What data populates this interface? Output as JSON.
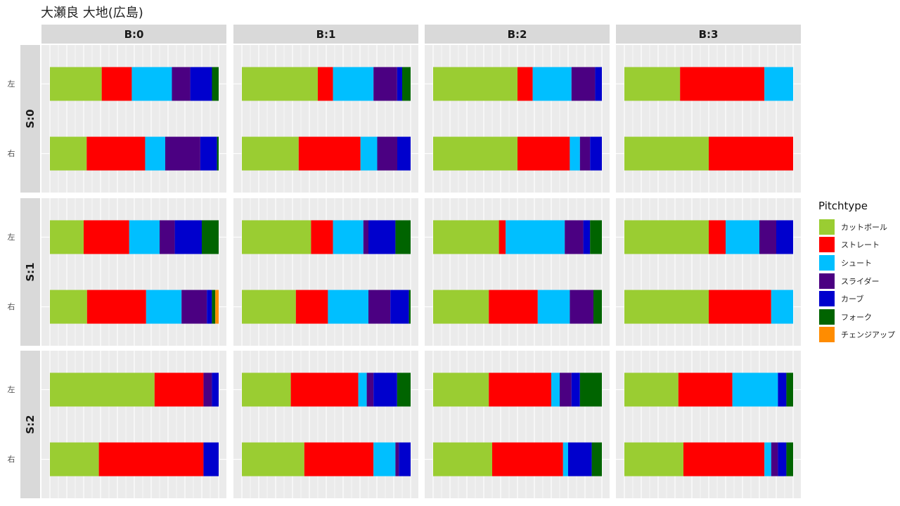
{
  "title": "大瀬良 大地(広島)",
  "legend": {
    "title": "Pitchtype",
    "items": [
      {
        "label": "カットボール",
        "color": "#9ACD32"
      },
      {
        "label": "ストレート",
        "color": "#FF0000"
      },
      {
        "label": "シュート",
        "color": "#00BFFF"
      },
      {
        "label": "スライダー",
        "color": "#4B0082"
      },
      {
        "label": "カーブ",
        "color": "#0000CD"
      },
      {
        "label": "フォーク",
        "color": "#006400"
      },
      {
        "label": "チェンジアップ",
        "color": "#FF8C00"
      }
    ]
  },
  "chart_data": {
    "type": "bar",
    "orientation": "horizontal",
    "stacked": true,
    "normalized": true,
    "column_facets": [
      "B:0",
      "B:1",
      "B:2",
      "B:3"
    ],
    "row_facets": [
      "S:0",
      "S:1",
      "S:2"
    ],
    "categories": [
      "左",
      "右"
    ],
    "series_names": [
      "カットボール",
      "ストレート",
      "シュート",
      "スライダー",
      "カーブ",
      "フォーク",
      "チェンジアップ"
    ],
    "xlim": [
      0,
      1
    ],
    "grid": true,
    "legend_position": "right",
    "panels": [
      {
        "col": "B:0",
        "row": "S:0",
        "values": {
          "左": [
            0.31,
            0.18,
            0.24,
            0.11,
            0.13,
            0.04,
            0.0
          ],
          "右": [
            0.22,
            0.35,
            0.12,
            0.21,
            0.1,
            0.01,
            0.0
          ]
        }
      },
      {
        "col": "B:1",
        "row": "S:0",
        "values": {
          "左": [
            0.45,
            0.09,
            0.24,
            0.14,
            0.03,
            0.05,
            0.0
          ],
          "右": [
            0.34,
            0.37,
            0.1,
            0.12,
            0.08,
            0.0,
            0.0
          ]
        }
      },
      {
        "col": "B:2",
        "row": "S:0",
        "values": {
          "左": [
            0.5,
            0.09,
            0.23,
            0.14,
            0.04,
            0.0,
            0.0
          ],
          "右": [
            0.5,
            0.31,
            0.06,
            0.06,
            0.07,
            0.0,
            0.0
          ]
        }
      },
      {
        "col": "B:3",
        "row": "S:0",
        "values": {
          "左": [
            0.33,
            0.5,
            0.17,
            0.0,
            0.0,
            0.0,
            0.0
          ],
          "右": [
            0.5,
            0.5,
            0.0,
            0.0,
            0.0,
            0.0,
            0.0
          ]
        }
      },
      {
        "col": "B:0",
        "row": "S:1",
        "values": {
          "左": [
            0.2,
            0.27,
            0.18,
            0.09,
            0.16,
            0.1,
            0.0
          ],
          "右": [
            0.22,
            0.35,
            0.21,
            0.15,
            0.03,
            0.02,
            0.02
          ]
        }
      },
      {
        "col": "B:1",
        "row": "S:1",
        "values": {
          "左": [
            0.41,
            0.13,
            0.18,
            0.03,
            0.16,
            0.09,
            0.0
          ],
          "右": [
            0.32,
            0.19,
            0.24,
            0.13,
            0.11,
            0.01,
            0.0
          ]
        }
      },
      {
        "col": "B:2",
        "row": "S:1",
        "values": {
          "左": [
            0.39,
            0.04,
            0.35,
            0.11,
            0.04,
            0.07,
            0.0
          ],
          "右": [
            0.33,
            0.29,
            0.19,
            0.14,
            0.0,
            0.05,
            0.0
          ]
        }
      },
      {
        "col": "B:3",
        "row": "S:1",
        "values": {
          "左": [
            0.5,
            0.1,
            0.2,
            0.1,
            0.1,
            0.0,
            0.0
          ],
          "右": [
            0.5,
            0.37,
            0.13,
            0.0,
            0.0,
            0.0,
            0.0
          ]
        }
      },
      {
        "col": "B:0",
        "row": "S:2",
        "values": {
          "左": [
            0.62,
            0.29,
            0.0,
            0.05,
            0.04,
            0.0,
            0.0
          ],
          "右": [
            0.29,
            0.62,
            0.0,
            0.0,
            0.09,
            0.0,
            0.0
          ]
        }
      },
      {
        "col": "B:1",
        "row": "S:2",
        "values": {
          "左": [
            0.29,
            0.4,
            0.05,
            0.04,
            0.14,
            0.08,
            0.0
          ],
          "右": [
            0.37,
            0.41,
            0.13,
            0.02,
            0.07,
            0.0,
            0.0
          ]
        }
      },
      {
        "col": "B:2",
        "row": "S:2",
        "values": {
          "左": [
            0.33,
            0.37,
            0.05,
            0.07,
            0.05,
            0.13,
            0.0
          ],
          "右": [
            0.35,
            0.42,
            0.03,
            0.0,
            0.14,
            0.06,
            0.0
          ]
        }
      },
      {
        "col": "B:3",
        "row": "S:2",
        "values": {
          "左": [
            0.32,
            0.32,
            0.27,
            0.0,
            0.05,
            0.04,
            0.0
          ],
          "右": [
            0.35,
            0.48,
            0.04,
            0.04,
            0.05,
            0.04,
            0.0
          ]
        }
      }
    ]
  }
}
